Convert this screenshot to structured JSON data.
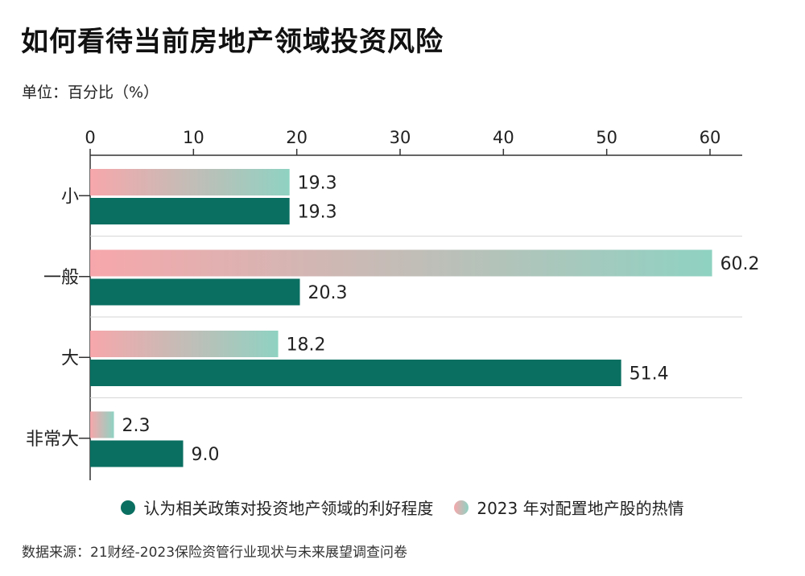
{
  "title": "如何看待当前房地产领域投资风险",
  "unit_label": "单位：百分比（%）",
  "legend": [
    {
      "label": "认为相关政策对投资地产领域的利好程度",
      "color": "#0a6e60"
    },
    {
      "label": "2023 年对配置地产股的热情",
      "color_start": "#f7a7ab",
      "color_end": "#8fd2c2"
    }
  ],
  "source": "数据来源：21财经-2023保险资管行业现状与未来展望调查问卷",
  "chart_data": {
    "type": "bar",
    "orientation": "horizontal",
    "categories": [
      "小",
      "一般",
      "大",
      "非常大"
    ],
    "series": [
      {
        "name": "2023 年对配置地产股的热情",
        "values": [
          19.3,
          60.2,
          18.2,
          2.3
        ],
        "value_labels": [
          "19.3",
          "60.2",
          "18.2",
          "2.3"
        ]
      },
      {
        "name": "认为相关政策对投资地产领域的利好程度",
        "values": [
          19.3,
          20.3,
          51.4,
          9.0
        ],
        "value_labels": [
          "19.3",
          "20.3",
          "51.4",
          "9.0"
        ]
      }
    ],
    "xlim": [
      0,
      63
    ],
    "xticks": [
      0,
      10,
      20,
      30,
      40,
      50,
      60
    ],
    "xtick_labels": [
      "0",
      "10",
      "20",
      "30",
      "40",
      "50",
      "60"
    ],
    "axis_position": "top",
    "grid": "horizontal separators between categories",
    "legend_position": "bottom"
  }
}
